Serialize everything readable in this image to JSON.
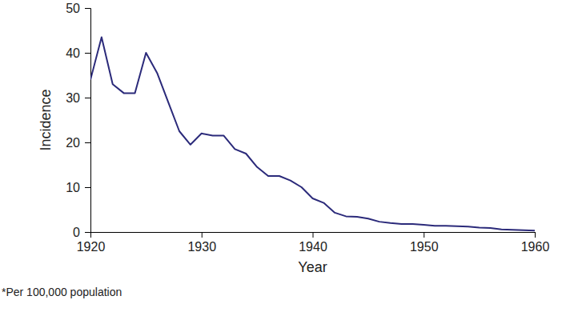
{
  "chart_data": {
    "type": "line",
    "x_label": "Year",
    "y_label": "Incidence",
    "footnote": "*Per 100,000 population",
    "x": [
      1920,
      1921,
      1922,
      1923,
      1924,
      1925,
      1926,
      1927,
      1928,
      1929,
      1930,
      1931,
      1932,
      1933,
      1934,
      1935,
      1936,
      1937,
      1938,
      1939,
      1940,
      1941,
      1942,
      1943,
      1944,
      1945,
      1946,
      1947,
      1948,
      1949,
      1950,
      1951,
      1952,
      1953,
      1954,
      1955,
      1956,
      1957,
      1958,
      1959,
      1960
    ],
    "values": [
      34,
      43.5,
      33,
      31,
      31,
      40,
      35.5,
      29,
      22.5,
      19.5,
      22,
      21.5,
      21.5,
      18.5,
      17.5,
      14.5,
      12.5,
      12.5,
      11.5,
      10,
      7.5,
      6.5,
      4.3,
      3.5,
      3.4,
      3.0,
      2.3,
      2.0,
      1.8,
      1.8,
      1.6,
      1.4,
      1.4,
      1.3,
      1.2,
      1.0,
      0.9,
      0.6,
      0.5,
      0.4,
      0.3
    ],
    "color": "#2b2a7a",
    "xlim": [
      1920,
      1960
    ],
    "xticks": [
      1920,
      1930,
      1940,
      1950,
      1960
    ],
    "ylim": [
      0,
      50
    ],
    "yticks": [
      0,
      10,
      20,
      30,
      40,
      50
    ],
    "grid": false
  }
}
